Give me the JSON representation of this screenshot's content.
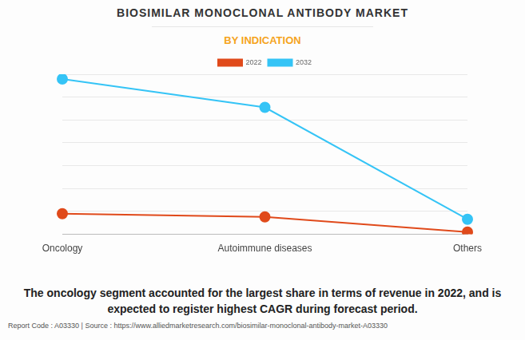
{
  "chart_data": {
    "type": "line",
    "title": "BIOSIMILAR MONOCLONAL ANTIBODY MARKET",
    "subtitle": "BY INDICATION",
    "categories": [
      "Oncology",
      "Autoimmune diseases",
      "Others"
    ],
    "series": [
      {
        "name": "2022",
        "color": "#e04a1b",
        "values": [
          0.9,
          0.76,
          0.1
        ],
        "marker": "circle"
      },
      {
        "name": "2032",
        "color": "#35c4f6",
        "values": [
          6.79,
          5.55,
          0.66
        ],
        "marker": "circle"
      }
    ],
    "ylim": [
      0,
      7
    ],
    "yticks": [
      0,
      1,
      2,
      3,
      4,
      5,
      6,
      7
    ],
    "grid": true,
    "legend": "top",
    "tick_labels": "x",
    "annotations": [
      "The oncology segment accounted for the largest share in terms of revenue in 2022, and is expected to register highest CAGR during forecast period.",
      "Report Code : A03330  |  Source : https://www.alliedmarketresearch.com/biosimilar-monoclonal-antibody-market-A03330"
    ]
  }
}
